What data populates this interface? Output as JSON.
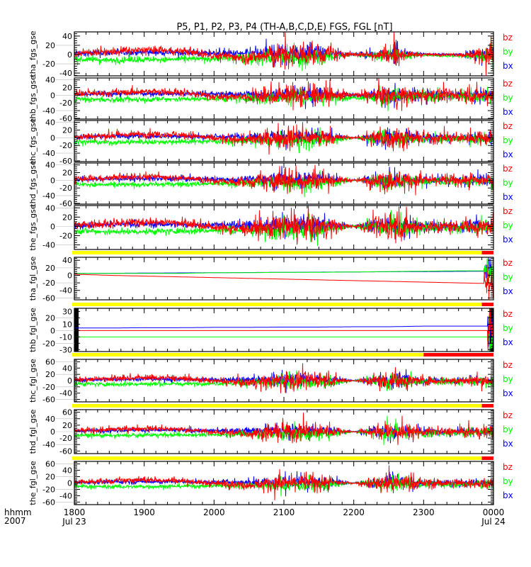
{
  "chart_data": {
    "type": "line",
    "title": "P5, P1, P2, P3, P4 (TH-A,B,C,D,E) FGS, FGL [nT]",
    "x_axis": {
      "label_line1": "hhmm",
      "label_line2": "2007",
      "range_hhmm": [
        "1800",
        "0000"
      ],
      "ticks": [
        "1800",
        "1900",
        "2000",
        "2100",
        "2200",
        "2300",
        "0000"
      ],
      "date_labels": {
        "start": "Jul 23",
        "end": "Jul 24"
      }
    },
    "sample_times_hhmm": [
      "1800",
      "1830",
      "1900",
      "1930",
      "2000",
      "2030",
      "2100",
      "2130",
      "2200",
      "2230",
      "2300",
      "2330",
      "0000"
    ],
    "legend": [
      {
        "name": "bz",
        "color": "#ff0000"
      },
      {
        "name": "by",
        "color": "#00ff00"
      },
      {
        "name": "bx",
        "color": "#0000ff"
      }
    ],
    "status_colors": {
      "ok": "#ffff00",
      "bad": "#ff0000",
      "fill": "#000000"
    },
    "panels": [
      {
        "ylabel": "tha_fgs_gse",
        "ylim": [
          -46,
          49
        ],
        "yticks": [
          "40",
          "20",
          "0",
          "-20",
          "-40"
        ],
        "ytick_values": [
          40,
          20,
          0,
          -20,
          -40
        ],
        "bx": [
          2,
          4,
          5,
          4,
          3,
          2,
          2,
          3,
          0,
          1,
          1,
          0,
          0
        ],
        "by": [
          -10,
          -12,
          -11,
          -10,
          -9,
          -7,
          -6,
          -7,
          0,
          -1,
          -2,
          -3,
          -3
        ],
        "bz": [
          3,
          6,
          10,
          8,
          -2,
          -5,
          0,
          2,
          0,
          0,
          0,
          0,
          0
        ],
        "activity": [
          3,
          3,
          3,
          3,
          3,
          5,
          10,
          8,
          1,
          6,
          1,
          1,
          9
        ],
        "spike_hhmm": "2236"
      },
      {
        "ylabel": "thb_fgs_gse",
        "ylim": [
          -62,
          45
        ],
        "yticks": [
          "40",
          "20",
          "0",
          "-20",
          "-40",
          "-60"
        ],
        "ytick_values": [
          40,
          20,
          0,
          -20,
          -40,
          -60
        ],
        "bx": [
          2,
          4,
          5,
          4,
          3,
          2,
          2,
          3,
          0,
          0,
          0,
          0,
          0
        ],
        "by": [
          -10,
          -12,
          -11,
          -10,
          -9,
          -8,
          -6,
          -5,
          -6,
          -4,
          -3,
          -3,
          -3
        ],
        "bz": [
          3,
          6,
          10,
          8,
          -2,
          -5,
          0,
          2,
          0,
          0,
          0,
          0,
          0
        ],
        "activity": [
          3,
          3,
          3,
          3,
          3,
          5,
          9,
          9,
          2,
          10,
          6,
          6,
          7
        ]
      },
      {
        "ylabel": "thc_fgs_gse",
        "ylim": [
          -62,
          45
        ],
        "yticks": [
          "40",
          "20",
          "0",
          "-20",
          "-40",
          "-60"
        ],
        "ytick_values": [
          40,
          20,
          0,
          -20,
          -40,
          -60
        ],
        "bx": [
          2,
          4,
          5,
          4,
          3,
          2,
          2,
          3,
          0,
          1,
          0,
          0,
          0
        ],
        "by": [
          -10,
          -12,
          -11,
          -10,
          -9,
          -7,
          -6,
          -8,
          0,
          -2,
          -3,
          -3,
          -3
        ],
        "bz": [
          3,
          6,
          10,
          8,
          -2,
          -5,
          0,
          2,
          0,
          0,
          0,
          0,
          0
        ],
        "activity": [
          3,
          3,
          3,
          3,
          3,
          5,
          10,
          9,
          0.5,
          11,
          5,
          5,
          7
        ]
      },
      {
        "ylabel": "thd_fgs_gse",
        "ylim": [
          -62,
          45
        ],
        "yticks": [
          "40",
          "20",
          "0",
          "-20",
          "-40",
          "-60"
        ],
        "ytick_values": [
          40,
          20,
          0,
          -20,
          -40,
          -60
        ],
        "bx": [
          2,
          4,
          5,
          4,
          3,
          2,
          2,
          3,
          0,
          1,
          0,
          0,
          0
        ],
        "by": [
          -10,
          -12,
          -11,
          -10,
          -9,
          -7,
          -6,
          -8,
          0,
          -2,
          -3,
          -3,
          -3
        ],
        "bz": [
          3,
          6,
          10,
          8,
          -2,
          -5,
          0,
          2,
          0,
          0,
          0,
          0,
          0
        ],
        "activity": [
          3,
          3,
          3,
          3,
          3,
          5,
          10,
          9,
          0.5,
          11,
          5,
          5,
          7
        ]
      },
      {
        "ylabel": "the_fgs_gse",
        "ylim": [
          -50,
          45
        ],
        "yticks": [
          "40",
          "20",
          "0",
          "-20",
          "-40"
        ],
        "ytick_values": [
          40,
          20,
          0,
          -20,
          -40
        ],
        "bx": [
          2,
          4,
          5,
          4,
          3,
          2,
          2,
          3,
          0,
          1,
          0,
          0,
          0
        ],
        "by": [
          -10,
          -12,
          -11,
          -10,
          -9,
          -7,
          -6,
          -8,
          0,
          -2,
          -3,
          -3,
          -3
        ],
        "bz": [
          3,
          6,
          10,
          8,
          -2,
          -5,
          0,
          2,
          0,
          0,
          0,
          0,
          0
        ],
        "activity": [
          3,
          3,
          3,
          3,
          3,
          5,
          10,
          9,
          0.5,
          11,
          5,
          5,
          7
        ],
        "status_bad_from_hhmm": "2350"
      },
      {
        "ylabel": "tha_fgl_gse",
        "ylim": [
          -65,
          48
        ],
        "yticks": [
          "40",
          "20",
          "0",
          "-20",
          "-40",
          "-60"
        ],
        "ytick_values": [
          40,
          20,
          0,
          -20,
          -40,
          -60
        ],
        "bx": [
          5,
          5.5,
          6,
          6.5,
          7,
          7.5,
          8,
          8.5,
          9,
          9.5,
          10,
          10.5,
          11
        ],
        "by": [
          5,
          5,
          5,
          5,
          7,
          7,
          8,
          8,
          9,
          10,
          11,
          12,
          12
        ],
        "bz": [
          3,
          0,
          -2,
          -4,
          -6,
          -8,
          -10,
          -12,
          -14,
          -16,
          -18,
          -20,
          -22
        ],
        "activity": [
          0,
          0,
          0,
          0,
          0,
          0,
          0,
          0,
          0,
          0,
          0,
          0,
          14
        ],
        "burst_from_hhmm": "2352",
        "status_bad_from_hhmm": "2350"
      },
      {
        "ylabel": "thb_fgl_gse",
        "ylim": [
          -33,
          35
        ],
        "yticks": [
          "30",
          "20",
          "10",
          "0",
          "-10",
          "-20",
          "-30"
        ],
        "ytick_values": [
          30,
          20,
          10,
          0,
          -10,
          -20,
          -30
        ],
        "bx": [
          4,
          4,
          4.5,
          4.5,
          5,
          5,
          5.5,
          5.5,
          6,
          6,
          7,
          7,
          7
        ],
        "by": [
          -10,
          -10,
          -10,
          -10,
          -10,
          -10,
          -10,
          -10,
          -10,
          -10,
          -10,
          -10,
          -10
        ],
        "bz": [
          0,
          0,
          0,
          0,
          0,
          0,
          0,
          0,
          0,
          0,
          0,
          0,
          0
        ],
        "activity": [
          0,
          0,
          0,
          0,
          0,
          0,
          0,
          0,
          0,
          0,
          0,
          0,
          9
        ],
        "burst_from_hhmm": "2355",
        "status_bad_from_hhmm": "2300",
        "data_gap_fill": true
      },
      {
        "ylabel": "thc_fgl_gse",
        "ylim": [
          -68,
          68
        ],
        "yticks": [
          "60",
          "40",
          "20",
          "0",
          "-20",
          "-40",
          "-60"
        ],
        "ytick_values": [
          60,
          40,
          20,
          0,
          -20,
          -40,
          -60
        ],
        "bx": [
          2,
          4,
          5,
          4,
          3,
          2,
          2,
          3,
          0,
          1,
          0,
          0,
          0
        ],
        "by": [
          -10,
          -12,
          -11,
          -10,
          -9,
          -7,
          -6,
          -8,
          0,
          -2,
          -3,
          -3,
          -3
        ],
        "bz": [
          3,
          6,
          10,
          8,
          -2,
          -5,
          0,
          2,
          0,
          0,
          0,
          0,
          0
        ],
        "activity": [
          3,
          3,
          3,
          3,
          3,
          5,
          10,
          9,
          0.5,
          12,
          5,
          5,
          7
        ],
        "status_bad_from_hhmm": "2350"
      },
      {
        "ylabel": "thd_fgl_gse",
        "ylim": [
          -68,
          68
        ],
        "yticks": [
          "60",
          "40",
          "20",
          "0",
          "-20",
          "-40",
          "-60"
        ],
        "ytick_values": [
          60,
          40,
          20,
          0,
          -20,
          -40,
          -60
        ],
        "bx": [
          2,
          4,
          5,
          4,
          3,
          2,
          2,
          3,
          0,
          1,
          0,
          0,
          0
        ],
        "by": [
          -10,
          -12,
          -11,
          -10,
          -9,
          -7,
          -6,
          -8,
          0,
          -2,
          -3,
          -3,
          -3
        ],
        "bz": [
          3,
          6,
          10,
          8,
          -2,
          -5,
          0,
          2,
          0,
          0,
          0,
          0,
          0
        ],
        "activity": [
          3,
          3,
          3,
          3,
          3,
          5,
          10,
          9,
          0.5,
          12,
          5,
          5,
          7
        ],
        "status_bad_from_hhmm": "2350"
      },
      {
        "ylabel": "the_fgl_gse",
        "ylim": [
          -68,
          68
        ],
        "yticks": [
          "60",
          "40",
          "20",
          "0",
          "-20",
          "-40",
          "-60"
        ],
        "ytick_values": [
          60,
          40,
          20,
          0,
          -20,
          -40,
          -60
        ],
        "bx": [
          2,
          4,
          5,
          4,
          3,
          2,
          2,
          3,
          0,
          1,
          0,
          0,
          0
        ],
        "by": [
          -10,
          -12,
          -11,
          -10,
          -9,
          -7,
          -6,
          -8,
          0,
          -2,
          -3,
          -3,
          -3
        ],
        "bz": [
          3,
          6,
          10,
          8,
          -2,
          -5,
          0,
          2,
          0,
          0,
          0,
          0,
          0
        ],
        "activity": [
          3,
          3,
          3,
          3,
          3,
          5,
          10,
          9,
          0.5,
          13,
          5,
          5,
          7
        ]
      }
    ]
  }
}
